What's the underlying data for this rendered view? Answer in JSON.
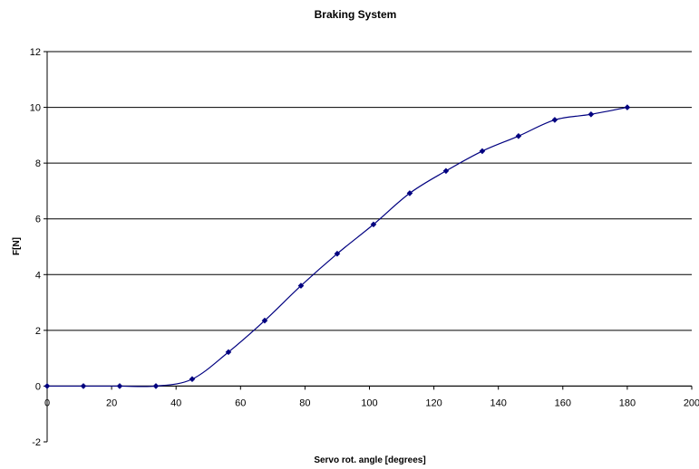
{
  "chart_data": {
    "type": "line",
    "title": "Braking System",
    "xlabel": "Servo rot. angle [degrees]",
    "ylabel": "F[N]",
    "xlim": [
      0,
      200
    ],
    "ylim": [
      -2,
      12
    ],
    "x_ticks": [
      "0",
      "20",
      "40",
      "60",
      "80",
      "100",
      "120",
      "140",
      "160",
      "180",
      "200"
    ],
    "y_ticks": [
      "-2",
      "0",
      "2",
      "4",
      "6",
      "8",
      "10",
      "12"
    ],
    "grid": "horizontal",
    "smoothed": true,
    "series": [
      {
        "color": "#000080",
        "marker": "diamond",
        "x": [
          0,
          11.25,
          22.5,
          33.75,
          45,
          56.25,
          67.5,
          78.75,
          90,
          101.25,
          112.5,
          123.75,
          135,
          146.25,
          157.5,
          168.75,
          180
        ],
        "y": [
          0,
          0,
          0,
          0,
          0.25,
          1.22,
          2.35,
          3.6,
          4.75,
          5.8,
          6.92,
          7.72,
          8.43,
          8.97,
          9.55,
          9.75,
          10.0
        ]
      }
    ]
  }
}
